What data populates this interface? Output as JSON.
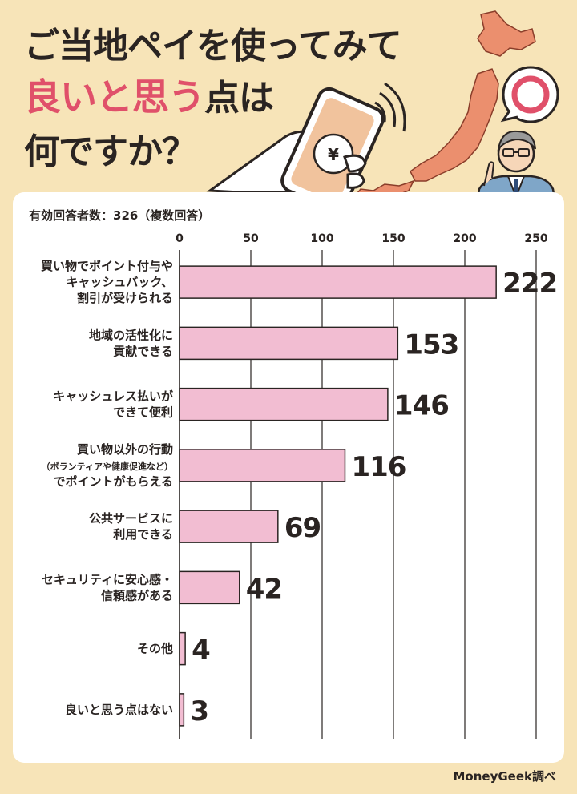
{
  "title": {
    "line1": "ご当地ペイを使ってみて",
    "line2_accent": "良いと思う",
    "line2_rest": "点は",
    "line3": "何ですか？"
  },
  "respondents": "有効回答者数：326（複数回答）",
  "source": "MoneyGeek調べ",
  "colors": {
    "background": "#f7e4b8",
    "bar": "#f2bdd2",
    "accent": "#e0506a",
    "map": "#eb8f6e"
  },
  "icons": [
    "smartphone-hand-icon",
    "yen-icon",
    "japan-map-icon",
    "target-speech-bubble-icon",
    "presenter-man-icon"
  ],
  "chart_data": {
    "type": "bar",
    "orientation": "horizontal",
    "categories": [
      [
        "買い物でポイント付与や",
        "キャッシュバック、",
        "割引が受けられる"
      ],
      [
        "地域の活性化に",
        "貢献できる"
      ],
      [
        "キャッシュレス払いが",
        "できて便利"
      ],
      [
        "買い物以外の行動",
        "（ボランティアや健康促進など）",
        "でポイントがもらえる"
      ],
      [
        "公共サービスに",
        "利用できる"
      ],
      [
        "セキュリティに安心感・",
        "信頼感がある"
      ],
      [
        "その他"
      ],
      [
        "良いと思う点はない"
      ]
    ],
    "values": [
      222,
      153,
      146,
      116,
      69,
      42,
      4,
      3
    ],
    "xticks": [
      0,
      50,
      100,
      150,
      200,
      250
    ],
    "xlim": [
      0,
      250
    ],
    "grid": true
  }
}
